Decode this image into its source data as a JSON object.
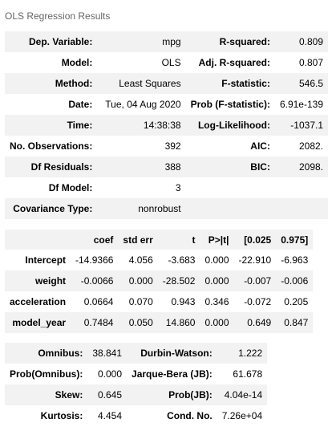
{
  "caption": "OLS Regression Results",
  "summary": [
    [
      "Dep. Variable:",
      "mpg",
      "R-squared:",
      "0.809"
    ],
    [
      "Model:",
      "OLS",
      "Adj. R-squared:",
      "0.807"
    ],
    [
      "Method:",
      "Least Squares",
      "F-statistic:",
      "546.5"
    ],
    [
      "Date:",
      "Tue, 04 Aug 2020",
      "Prob (F-statistic):",
      "6.91e-139"
    ],
    [
      "Time:",
      "14:38:38",
      "Log-Likelihood:",
      "-1037.1"
    ],
    [
      "No. Observations:",
      "392",
      "AIC:",
      "2082."
    ],
    [
      "Df Residuals:",
      "388",
      "BIC:",
      "2098."
    ],
    [
      "Df Model:",
      "3",
      "",
      ""
    ],
    [
      "Covariance Type:",
      "nonrobust",
      "",
      ""
    ]
  ],
  "coef_table": {
    "headers": [
      "",
      "coef",
      "std err",
      "t",
      "P>|t|",
      "[0.025",
      "0.975]"
    ],
    "rows": [
      [
        "Intercept",
        "-14.9366",
        "4.056",
        "-3.683",
        "0.000",
        "-22.910",
        "-6.963"
      ],
      [
        "weight",
        "-0.0066",
        "0.000",
        "-28.502",
        "0.000",
        "-0.007",
        "-0.006"
      ],
      [
        "acceleration",
        "0.0664",
        "0.070",
        "0.943",
        "0.346",
        "-0.072",
        "0.205"
      ],
      [
        "model_year",
        "0.7484",
        "0.050",
        "14.860",
        "0.000",
        "0.649",
        "0.847"
      ]
    ]
  },
  "diagnostics": [
    [
      "Omnibus:",
      "38.841",
      "Durbin-Watson:",
      "1.222"
    ],
    [
      "Prob(Omnibus):",
      "0.000",
      "Jarque-Bera (JB):",
      "61.678"
    ],
    [
      "Skew:",
      "0.645",
      "Prob(JB):",
      "4.04e-14"
    ],
    [
      "Kurtosis:",
      "4.454",
      "Cond. No.",
      "7.26e+04"
    ]
  ]
}
